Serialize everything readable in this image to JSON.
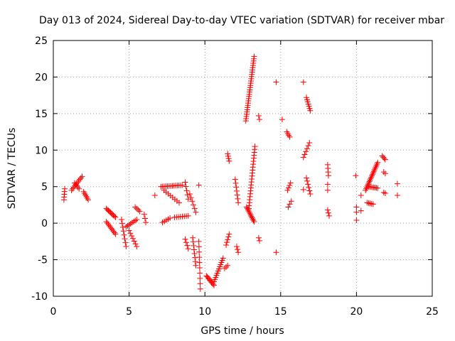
{
  "chart_data": {
    "type": "scatter",
    "title": "Day 013 of 2024, Sidereal Day-to-day VTEC variation (SDTVAR) for receiver mbar",
    "xlabel": "GPS time / hours",
    "ylabel": "SDTVAR / TECUs",
    "xlim": [
      0,
      25
    ],
    "ylim": [
      -10,
      25
    ],
    "xticks": [
      "0",
      "5",
      "10",
      "15",
      "20",
      "25"
    ],
    "yticks": [
      "-10",
      "-5",
      "0",
      "5",
      "10",
      "15",
      "20",
      "25"
    ],
    "grid": true,
    "marker": "plus",
    "color": "#ff0000",
    "segments": [
      {
        "x0": 0.7,
        "y0": 3.2,
        "x1": 0.75,
        "y1": 4.7,
        "n": 5
      },
      {
        "x0": 1.2,
        "y0": 4.5,
        "x1": 1.9,
        "y1": 6.4,
        "n": 10
      },
      {
        "x0": 1.4,
        "y0": 5.5,
        "x1": 1.7,
        "y1": 4.7,
        "n": 5
      },
      {
        "x0": 2.0,
        "y0": 4.3,
        "x1": 2.3,
        "y1": 3.2,
        "n": 6
      },
      {
        "x0": 3.5,
        "y0": 2.0,
        "x1": 4.1,
        "y1": 0.8,
        "n": 10
      },
      {
        "x0": 3.5,
        "y0": 0.2,
        "x1": 4.1,
        "y1": -1.5,
        "n": 10
      },
      {
        "x0": 4.5,
        "y0": 0.5,
        "x1": 4.8,
        "y1": -3.2,
        "n": 8
      },
      {
        "x0": 4.8,
        "y0": -0.5,
        "x1": 5.5,
        "y1": 0.5,
        "n": 8
      },
      {
        "x0": 5.0,
        "y0": -1.0,
        "x1": 5.5,
        "y1": -3.2,
        "n": 7
      },
      {
        "x0": 5.4,
        "y0": 2.2,
        "x1": 5.7,
        "y1": 1.6,
        "n": 4
      },
      {
        "x0": 6.0,
        "y0": 1.2,
        "x1": 6.1,
        "y1": 0.1,
        "n": 3
      },
      {
        "x0": 6.7,
        "y0": 3.8,
        "x1": 6.8,
        "y1": 3.8,
        "n": 1
      },
      {
        "x0": 7.1,
        "y0": 5.0,
        "x1": 8.5,
        "y1": 5.2,
        "n": 14
      },
      {
        "x0": 7.3,
        "y0": 4.5,
        "x1": 8.3,
        "y1": 2.8,
        "n": 8
      },
      {
        "x0": 7.2,
        "y0": 0.1,
        "x1": 7.7,
        "y1": 0.7,
        "n": 5
      },
      {
        "x0": 8.0,
        "y0": 0.8,
        "x1": 8.9,
        "y1": 1.0,
        "n": 8
      },
      {
        "x0": 8.7,
        "y0": 5.6,
        "x1": 8.9,
        "y1": 3.3,
        "n": 5
      },
      {
        "x0": 8.7,
        "y0": -2.2,
        "x1": 8.9,
        "y1": -3.5,
        "n": 4
      },
      {
        "x0": 9.0,
        "y0": 4.0,
        "x1": 9.4,
        "y1": 1.5,
        "n": 6
      },
      {
        "x0": 9.2,
        "y0": -2.0,
        "x1": 9.4,
        "y1": -5.8,
        "n": 8
      },
      {
        "x0": 9.6,
        "y0": 5.2,
        "x1": 9.65,
        "y1": 5.2,
        "n": 1
      },
      {
        "x0": 9.6,
        "y0": -2.5,
        "x1": 9.7,
        "y1": -9.0,
        "n": 10
      },
      {
        "x0": 10.1,
        "y0": -7.2,
        "x1": 10.6,
        "y1": -8.5,
        "n": 10
      },
      {
        "x0": 10.6,
        "y0": -8.0,
        "x1": 11.2,
        "y1": -4.8,
        "n": 12
      },
      {
        "x0": 11.3,
        "y0": -6.2,
        "x1": 11.5,
        "y1": -5.8,
        "n": 3
      },
      {
        "x0": 11.4,
        "y0": -3.0,
        "x1": 11.6,
        "y1": -1.5,
        "n": 5
      },
      {
        "x0": 11.5,
        "y0": 9.5,
        "x1": 11.6,
        "y1": 8.5,
        "n": 4
      },
      {
        "x0": 12.0,
        "y0": 6.0,
        "x1": 12.2,
        "y1": 2.8,
        "n": 7
      },
      {
        "x0": 12.1,
        "y0": -3.2,
        "x1": 12.2,
        "y1": -4.0,
        "n": 3
      },
      {
        "x0": 12.7,
        "y0": 14.0,
        "x1": 13.25,
        "y1": 22.8,
        "n": 30
      },
      {
        "x0": 12.75,
        "y0": 2.2,
        "x1": 13.25,
        "y1": 0.2,
        "n": 12
      },
      {
        "x0": 12.9,
        "y0": 2.0,
        "x1": 13.3,
        "y1": 10.5,
        "n": 22
      },
      {
        "x0": 13.55,
        "y0": 14.7,
        "x1": 13.6,
        "y1": 14.2,
        "n": 2
      },
      {
        "x0": 13.55,
        "y0": -2.0,
        "x1": 13.6,
        "y1": -2.4,
        "n": 2
      },
      {
        "x0": 14.7,
        "y0": 19.3,
        "x1": 14.7,
        "y1": 19.3,
        "n": 1
      },
      {
        "x0": 14.7,
        "y0": -4.0,
        "x1": 14.7,
        "y1": -4.0,
        "n": 1
      },
      {
        "x0": 15.1,
        "y0": 14.2,
        "x1": 15.1,
        "y1": 14.2,
        "n": 1
      },
      {
        "x0": 15.4,
        "y0": 12.5,
        "x1": 15.6,
        "y1": 11.8,
        "n": 4
      },
      {
        "x0": 15.45,
        "y0": 4.5,
        "x1": 15.65,
        "y1": 5.5,
        "n": 4
      },
      {
        "x0": 15.5,
        "y0": 2.2,
        "x1": 15.7,
        "y1": 3.0,
        "n": 3
      },
      {
        "x0": 16.5,
        "y0": 19.3,
        "x1": 16.5,
        "y1": 19.3,
        "n": 1
      },
      {
        "x0": 16.7,
        "y0": 17.2,
        "x1": 16.95,
        "y1": 15.4,
        "n": 7
      },
      {
        "x0": 16.5,
        "y0": 9.0,
        "x1": 16.9,
        "y1": 11.0,
        "n": 6
      },
      {
        "x0": 16.5,
        "y0": 4.6,
        "x1": 16.5,
        "y1": 4.6,
        "n": 1
      },
      {
        "x0": 16.7,
        "y0": 6.2,
        "x1": 16.95,
        "y1": 4.0,
        "n": 6
      },
      {
        "x0": 18.1,
        "y0": 8.0,
        "x1": 18.15,
        "y1": 6.5,
        "n": 4
      },
      {
        "x0": 18.1,
        "y0": 5.3,
        "x1": 18.1,
        "y1": 4.5,
        "n": 2
      },
      {
        "x0": 18.1,
        "y0": 1.8,
        "x1": 18.2,
        "y1": 1.0,
        "n": 3
      },
      {
        "x0": 19.95,
        "y0": 6.5,
        "x1": 19.95,
        "y1": 6.5,
        "n": 1
      },
      {
        "x0": 20.0,
        "y0": 2.2,
        "x1": 20.0,
        "y1": 1.5,
        "n": 2
      },
      {
        "x0": 20.0,
        "y0": 0.4,
        "x1": 20.0,
        "y1": 0.4,
        "n": 1
      },
      {
        "x0": 20.3,
        "y0": 3.8,
        "x1": 20.3,
        "y1": 3.8,
        "n": 1
      },
      {
        "x0": 20.3,
        "y0": 1.7,
        "x1": 20.3,
        "y1": 1.7,
        "n": 1
      },
      {
        "x0": 20.6,
        "y0": 4.5,
        "x1": 21.4,
        "y1": 8.3,
        "n": 20
      },
      {
        "x0": 20.8,
        "y0": 5.0,
        "x1": 21.4,
        "y1": 4.8,
        "n": 8
      },
      {
        "x0": 20.7,
        "y0": 2.8,
        "x1": 21.1,
        "y1": 2.6,
        "n": 5
      },
      {
        "x0": 21.7,
        "y0": 9.2,
        "x1": 21.9,
        "y1": 8.7,
        "n": 4
      },
      {
        "x0": 21.8,
        "y0": 7.0,
        "x1": 21.9,
        "y1": 6.8,
        "n": 2
      },
      {
        "x0": 21.8,
        "y0": 4.2,
        "x1": 21.9,
        "y1": 4.1,
        "n": 2
      },
      {
        "x0": 22.7,
        "y0": 5.4,
        "x1": 22.7,
        "y1": 5.4,
        "n": 1
      },
      {
        "x0": 22.7,
        "y0": 3.8,
        "x1": 22.7,
        "y1": 3.8,
        "n": 1
      }
    ]
  }
}
